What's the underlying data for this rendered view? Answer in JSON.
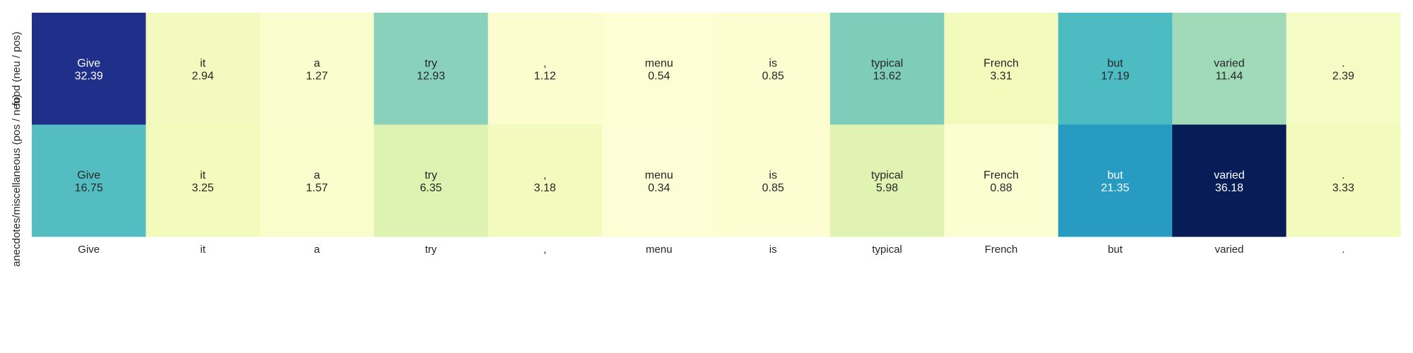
{
  "chart_data": {
    "type": "heatmap",
    "title": "",
    "xlabel": "",
    "ylabel": "",
    "colormap": "YlGnBu",
    "vmin": 0,
    "vmax": 36.18,
    "legend": "none",
    "grid": false,
    "x": [
      "Give",
      "it",
      "a",
      "try",
      ",",
      "menu",
      "is",
      "typical",
      "French",
      "but",
      "varied",
      "."
    ],
    "rows": [
      {
        "label": "food (neu / pos)",
        "values": [
          32.39,
          2.94,
          1.27,
          12.93,
          1.12,
          0.54,
          0.85,
          13.62,
          3.31,
          17.19,
          11.44,
          2.39
        ]
      },
      {
        "label": "anecdotes/miscellaneous (pos / neu)",
        "values": [
          16.75,
          3.25,
          1.57,
          6.35,
          3.18,
          0.34,
          0.85,
          5.98,
          0.88,
          21.35,
          36.18,
          3.33
        ]
      }
    ]
  }
}
